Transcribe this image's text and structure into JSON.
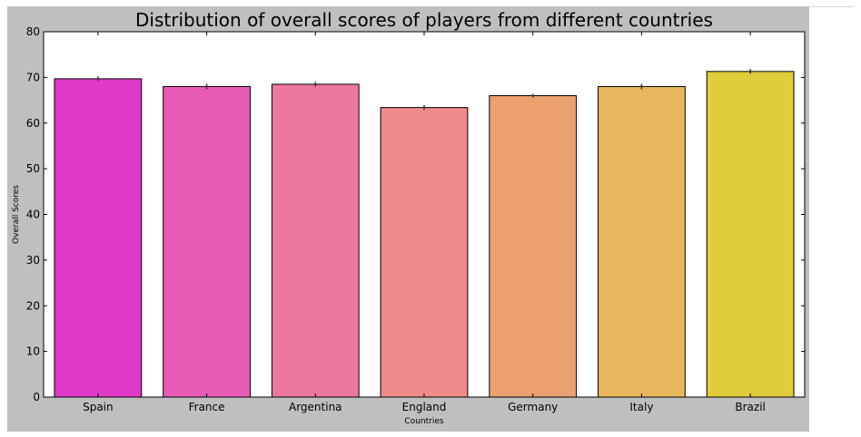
{
  "chart_data": {
    "type": "bar",
    "title": "Distribution of overall scores of players from different countries",
    "xlabel": "Countries",
    "ylabel": "Overall Scores",
    "categories": [
      "Spain",
      "France",
      "Argentina",
      "England",
      "Germany",
      "Italy",
      "Brazil"
    ],
    "values": [
      69.7,
      68.0,
      68.5,
      63.4,
      66.0,
      68.0,
      71.3
    ],
    "error": [
      0.5,
      0.6,
      0.5,
      0.5,
      0.4,
      0.6,
      0.5
    ],
    "colors": [
      "#e03ac8",
      "#e75ab6",
      "#ec77a0",
      "#ef8b8b",
      "#eba070",
      "#e6b75c",
      "#e1cc3c"
    ],
    "ylim": [
      0,
      80
    ],
    "yticks": [
      0,
      10,
      20,
      30,
      40,
      50,
      60,
      70,
      80
    ],
    "grid": false,
    "legend": "none"
  }
}
